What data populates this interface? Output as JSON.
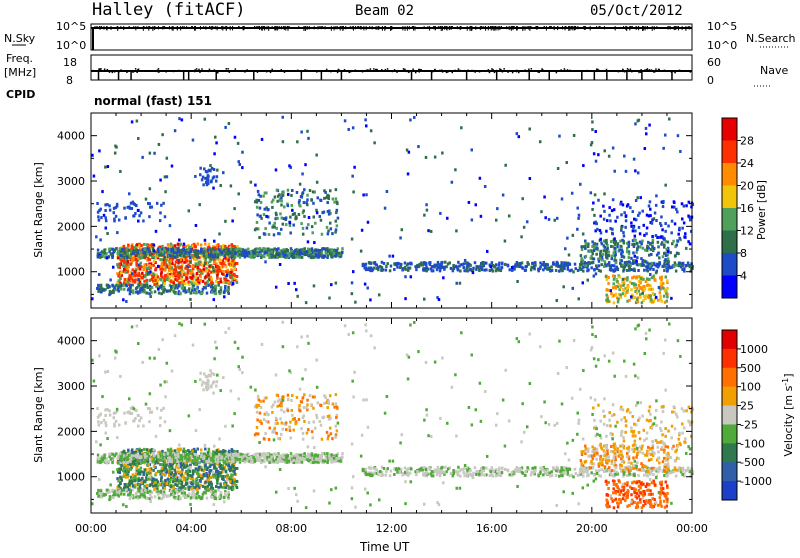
{
  "header": {
    "station": "Halley (fitACF)",
    "beam": "Beam 02",
    "date": "05/Oct/2012"
  },
  "top_panels": {
    "nsky_label": "N.Sky",
    "nsearch_label": "N.Search",
    "nsky_ticks": [
      "10^5",
      "10^0"
    ],
    "nsearch_ticks": [
      "10^5",
      "10^0"
    ],
    "freq_label": "Freq.",
    "freq_unit": "[MHz]",
    "freq_ticks": [
      "18",
      "8"
    ],
    "nave_label": "Nave",
    "nave_ticks": [
      "60",
      "0"
    ],
    "cpid_label": "CPID",
    "cpid_value": "normal (fast) 151"
  },
  "chart_data": [
    {
      "type": "heatmap",
      "name": "power",
      "ylabel": "Slant Range [km]",
      "xlabel": "",
      "x_ticks": [
        "00:00",
        "04:00",
        "08:00",
        "12:00",
        "16:00",
        "20:00",
        "00:00"
      ],
      "y_ticks": [
        1000,
        2000,
        3000,
        4000
      ],
      "ylim": [
        200,
        4500
      ],
      "xlim_hours": [
        0,
        24
      ],
      "colorbar": {
        "label": "Power [dB]",
        "ticks": [
          "4",
          "8",
          "12",
          "16",
          "20",
          "24",
          "28"
        ],
        "colors": [
          "#0000ff",
          "#1e4bc8",
          "#2e6e4a",
          "#4fa05a",
          "#f2c40a",
          "#ff8c00",
          "#ff3000",
          "#e60000"
        ]
      }
    },
    {
      "type": "heatmap",
      "name": "velocity",
      "ylabel": "Slant Range [km]",
      "xlabel": "Time UT",
      "x_ticks": [
        "00:00",
        "04:00",
        "08:00",
        "12:00",
        "16:00",
        "20:00",
        "00:00"
      ],
      "y_ticks": [
        1000,
        2000,
        3000,
        4000
      ],
      "ylim": [
        200,
        4500
      ],
      "xlim_hours": [
        0,
        24
      ],
      "colorbar": {
        "label": "Velocity [m s",
        "label_sup": "-1",
        "label_end": "]",
        "ticks": [
          "1000",
          "500",
          "100",
          "25",
          "-25",
          "-100",
          "-500",
          "-1000"
        ],
        "colors": [
          "#1a3fc8",
          "#2f5fa8",
          "#2e7a4e",
          "#4faa3a",
          "#c8c8c0",
          "#f0a000",
          "#ff7000",
          "#ff3000",
          "#e00000"
        ]
      }
    }
  ]
}
